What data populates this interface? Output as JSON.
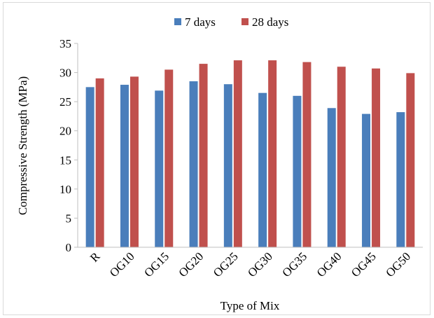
{
  "chart_data": {
    "type": "bar",
    "title": "",
    "xlabel": "Type of Mix",
    "ylabel": "Compressive Strength (MPa)",
    "ylim": [
      0,
      35
    ],
    "yticks": [
      0,
      5,
      10,
      15,
      20,
      25,
      30,
      35
    ],
    "grid": false,
    "legend_position": "top",
    "categories": [
      "R",
      "OG10",
      "OG15",
      "OG20",
      "OG25",
      "OG30",
      "OG35",
      "OG40",
      "OG45",
      "OG50"
    ],
    "series": [
      {
        "name": "7 days",
        "color": "#4A7EBB",
        "values": [
          27.5,
          27.9,
          26.9,
          28.5,
          28.0,
          26.5,
          26.0,
          23.9,
          22.9,
          23.2
        ]
      },
      {
        "name": "28 days",
        "color": "#C0504D",
        "values": [
          29.0,
          29.3,
          30.5,
          31.5,
          32.1,
          32.1,
          31.8,
          31.0,
          30.7,
          29.9
        ]
      }
    ]
  }
}
